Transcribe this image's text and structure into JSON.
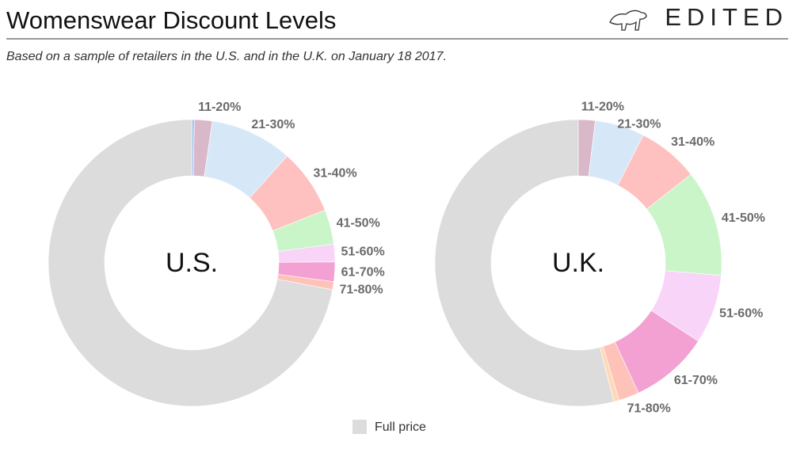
{
  "header": {
    "title": "Womenswear Discount Levels",
    "subtitle": "Based on a sample of retailers in the U.S. and in the U.K. on January 18 2017.",
    "logo": "EDITED"
  },
  "legend": {
    "label": "Full price",
    "color": "#dcdcdc"
  },
  "chart_data": [
    {
      "type": "pie",
      "title": "U.S.",
      "categories": [
        null,
        "11-20%",
        "21-30%",
        "31-40%",
        "41-50%",
        "51-60%",
        "61-70%",
        "71-80%",
        null
      ],
      "values": [
        0.3,
        2,
        9.3,
        7.4,
        3.9,
        2,
        2.2,
        0.9,
        72
      ],
      "colors": [
        "#a8c8f0",
        "#d9b8c9",
        "#d6e8f7",
        "#ffc0c0",
        "#c9f5c9",
        "#f9d4f9",
        "#f3a0d2",
        "#ffc2b8",
        "#dcdcdc"
      ]
    },
    {
      "type": "pie",
      "title": "U.K.",
      "categories": [
        "11-20%",
        "21-30%",
        "31-40%",
        "41-50%",
        "51-60%",
        "61-70%",
        "71-80%",
        null,
        null
      ],
      "values": [
        1.9,
        5.6,
        6.9,
        12,
        7.8,
        8.9,
        2.3,
        0.6,
        54
      ],
      "colors": [
        "#d9b8c9",
        "#d6e8f7",
        "#ffc0c0",
        "#c9f5c9",
        "#f9d4f9",
        "#f3a0d2",
        "#ffc2b8",
        "#ffd8b8",
        "#dcdcdc"
      ]
    }
  ]
}
